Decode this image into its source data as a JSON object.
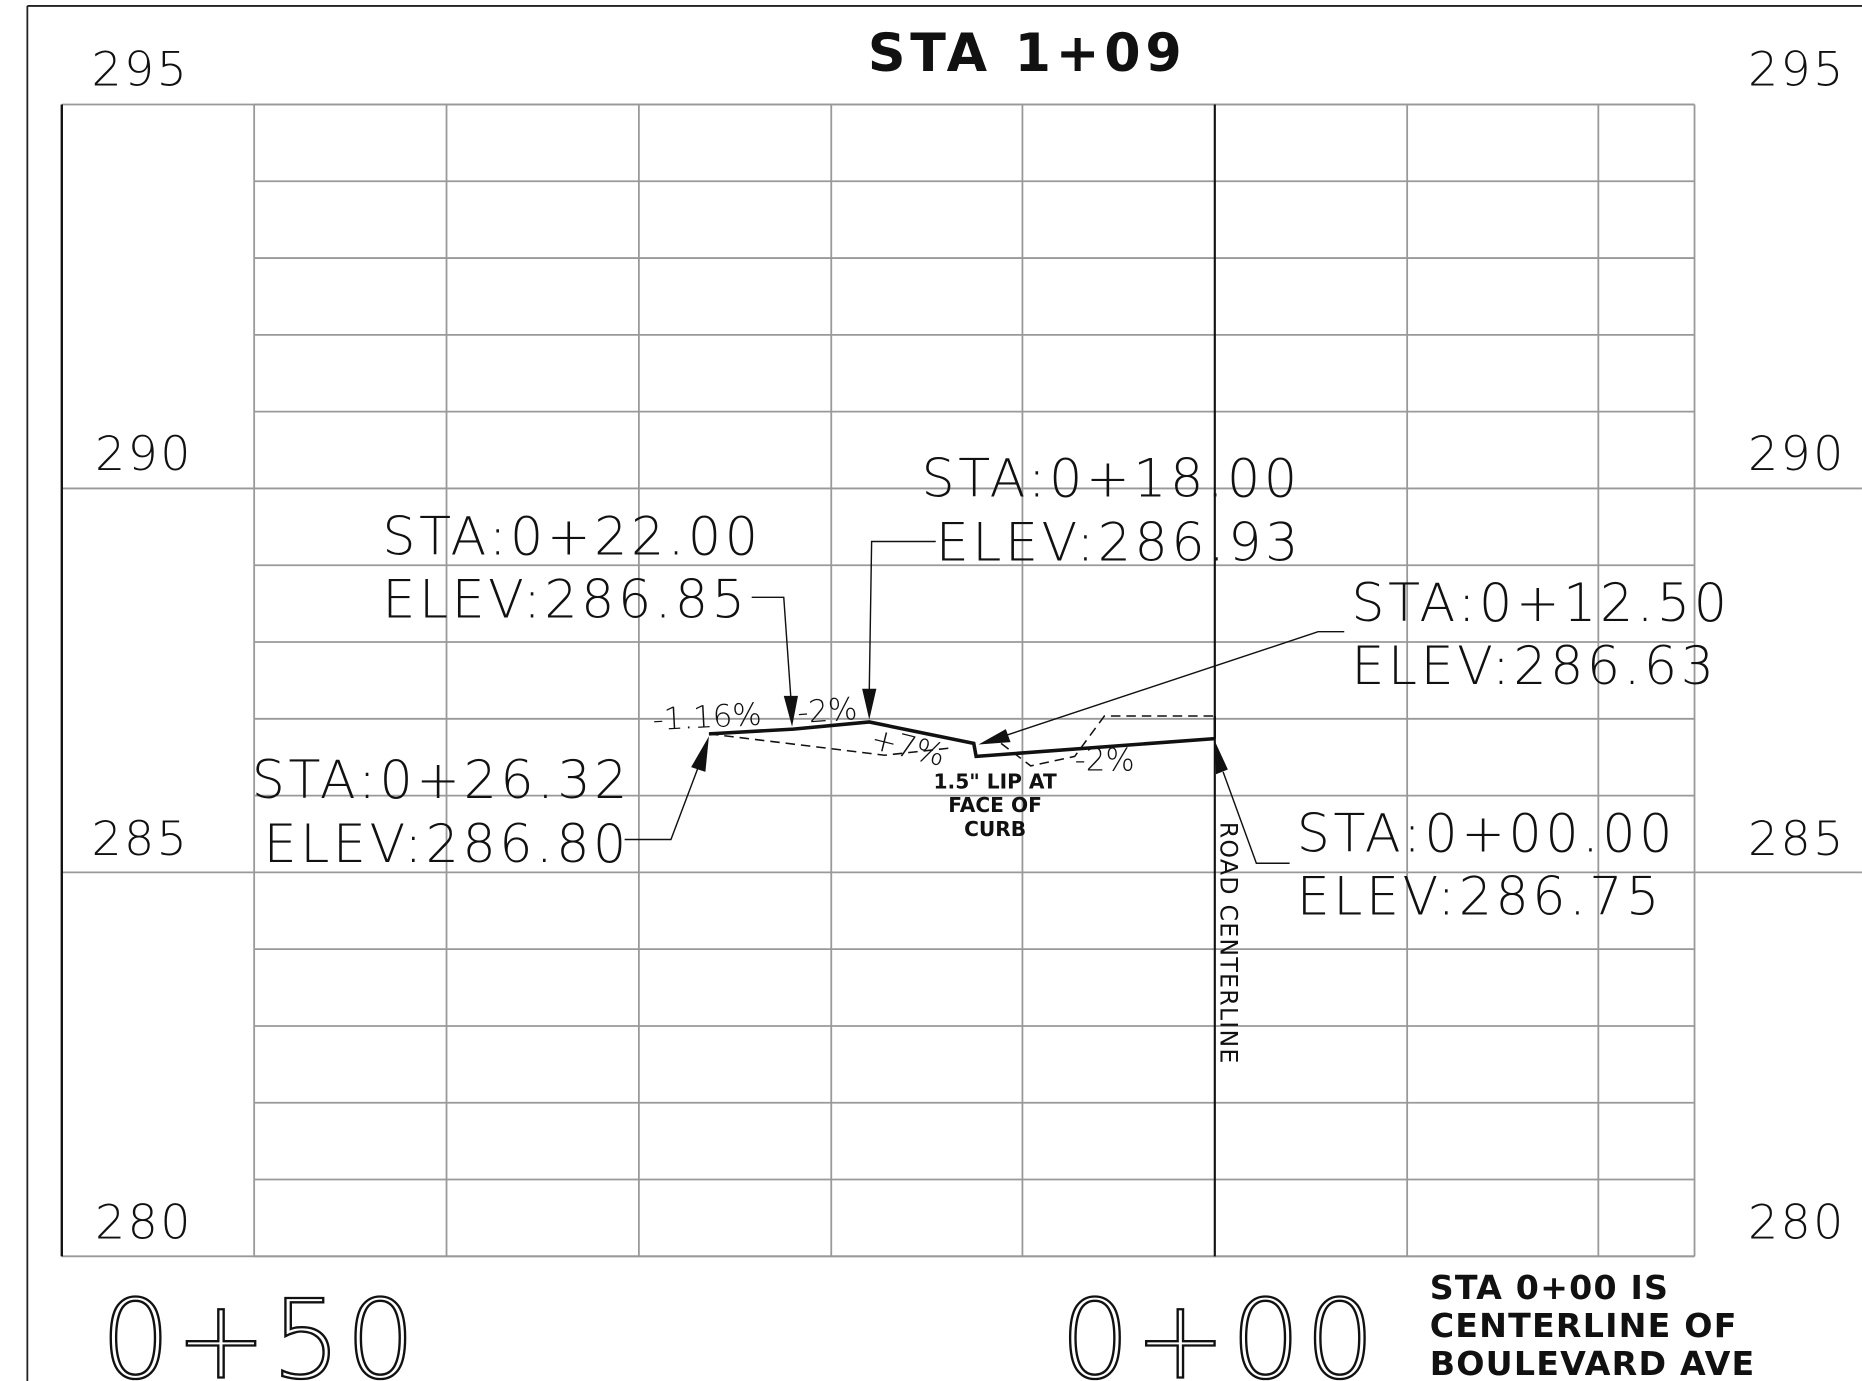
{
  "title": "STA 1+09",
  "elevation_labels_left": [
    "295",
    "290",
    "285",
    "280"
  ],
  "elevation_labels_right": [
    "295",
    "290",
    "285",
    "280"
  ],
  "station_labels": [
    "0+50",
    "0+00"
  ],
  "note": [
    "STA 0+00 IS",
    "CENTERLINE OF",
    "BOULEVARD AVE"
  ],
  "callouts": [
    {
      "station": "STA:0+22.00",
      "elevation": "ELEV:286.85"
    },
    {
      "station": "STA:0+18.00",
      "elevation": "ELEV:286.93"
    },
    {
      "station": "STA:0+12.50",
      "elevation": "ELEV:286.63"
    },
    {
      "station": "STA:0+26.32",
      "elevation": "ELEV:286.80"
    },
    {
      "station": "STA:0+00.00",
      "elevation": "ELEV:286.75"
    }
  ],
  "grades": [
    "-1.16%",
    "-2%",
    "+7%",
    "-2%"
  ],
  "curb_note": [
    "1.5\" LIP AT",
    "FACE OF",
    "CURB"
  ],
  "centerline_label": "ROAD CENTERLINE"
}
